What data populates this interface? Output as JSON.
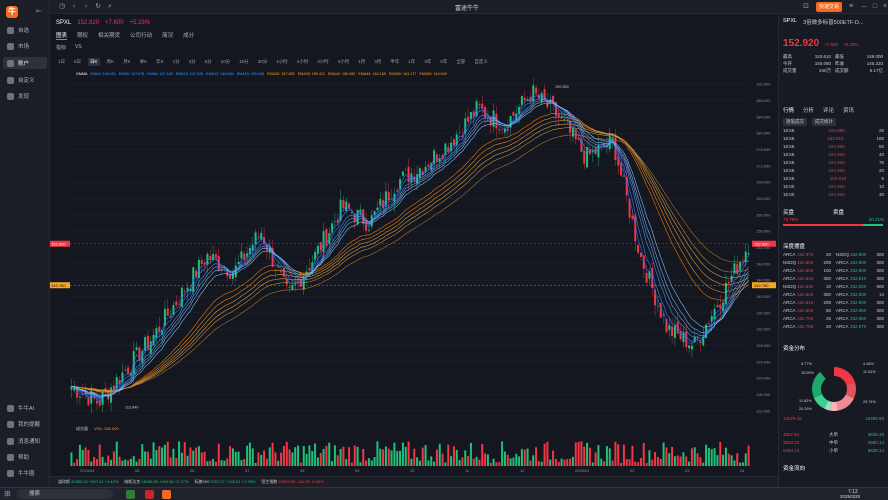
{
  "sidebar": {
    "logo": "牛",
    "items": [
      {
        "label": "自选",
        "active": false
      },
      {
        "label": "市场",
        "active": false
      },
      {
        "label": "账户",
        "active": true
      },
      {
        "label": "自定义",
        "active": false
      },
      {
        "label": "发现",
        "active": false
      }
    ],
    "bottom_items": [
      {
        "label": "牛牛AI"
      },
      {
        "label": "我的提醒"
      },
      {
        "label": "消息通知"
      },
      {
        "label": "帮助"
      },
      {
        "label": "牛牛圈"
      }
    ]
  },
  "titlebar": {
    "title": "富途牛牛",
    "trade_button": "快速交易"
  },
  "symbol": {
    "code": "SPXL",
    "price": "152.920",
    "change": "+7.600",
    "change_pct": "+5.23%"
  },
  "tabs": [
    "图表",
    "期权",
    "相关期货",
    "公司行动",
    "简况",
    "成分"
  ],
  "tools": [
    "指标",
    "VS"
  ],
  "periods": [
    "1日",
    "5日",
    "日K",
    "周K",
    "月K",
    "季K",
    "年K",
    "1分",
    "3分",
    "5分",
    "10分",
    "15分",
    "30分",
    "1小时",
    "2小时",
    "3小时",
    "4小时",
    "1月",
    "3月",
    "半年",
    "1年",
    "3年",
    "5年",
    "全部",
    "自定义"
  ],
  "active_period": "日K",
  "ma_legend": [
    {
      "text": "GMMA",
      "color": "#ffffff"
    },
    {
      "text": "EMA3: 149.051",
      "color": "#3b9cff"
    },
    {
      "text": "EMA5: 147.078",
      "color": "#3b9cff"
    },
    {
      "text": "EMA8: 147.182",
      "color": "#3b9cff"
    },
    {
      "text": "EMA10: 147.628",
      "color": "#3b9cff"
    },
    {
      "text": "EMA12: 148.464",
      "color": "#3b9cff"
    },
    {
      "text": "EMA15: 150.648",
      "color": "#3b9cff"
    },
    {
      "text": "EMA30: 157.883",
      "color": "#f5a623"
    },
    {
      "text": "EMA35: 159.411",
      "color": "#f5a623"
    },
    {
      "text": "EMA40: 160.653",
      "color": "#f5a623"
    },
    {
      "text": "EMA45: 162.169",
      "color": "#f5a623"
    },
    {
      "text": "EMA50: 163.177",
      "color": "#f5a623"
    },
    {
      "text": "EMA60: 164.649",
      "color": "#f5a623"
    }
  ],
  "y_ticks": [
    "192.000",
    "188.000",
    "184.000",
    "180.000",
    "176.000",
    "172.000",
    "168.000",
    "164.000",
    "160.000",
    "156.000",
    "152.000",
    "148.000",
    "144.000",
    "140.000",
    "136.000",
    "132.000",
    "128.000",
    "124.000",
    "120.000",
    "116.000",
    "112.000"
  ],
  "price_marker": "152.920",
  "price_marker2": "142.760",
  "high_label": "190.550",
  "low_label": "113.840",
  "volume_label": "成交量",
  "volume_value": "VOL: 340.000",
  "x_ticks": [
    "2024/04",
    "05",
    "06",
    "07",
    "08",
    "09",
    "10",
    "11",
    "12",
    "2025/01",
    "02",
    "03",
    "04"
  ],
  "chart_data": {
    "type": "candlestick",
    "x": [
      "2024/04",
      "2024/05",
      "2024/06",
      "2024/07",
      "2024/08",
      "2024/09",
      "2024/10",
      "2024/11",
      "2024/12",
      "2025/01",
      "2025/02",
      "2025/03"
    ],
    "close_approx": [
      118,
      126,
      140,
      155,
      150,
      160,
      168,
      178,
      184,
      176,
      174,
      152.92
    ],
    "high": 190.55,
    "low": 113.84,
    "ylim": [
      110,
      194
    ]
  },
  "right_panel": {
    "symbol": "SPXL",
    "name": "3倍做多标普500ETF-D...",
    "price": "152.920",
    "change": "+7.600",
    "change_pct": "+5.23%",
    "stats": [
      {
        "k": "最高",
        "v": "153.610"
      },
      {
        "k": "今开",
        "v": "150.080"
      },
      {
        "k": "成交量",
        "v": "340万"
      },
      {
        "k": "最低",
        "v": "149.000"
      },
      {
        "k": "昨收",
        "v": "145.320"
      },
      {
        "k": "成交额",
        "v": "5.17亿"
      }
    ],
    "tabs": [
      "行情",
      "分析",
      "评论",
      "资讯"
    ],
    "sub_tabs": [
      "逐笔成交",
      "成交统计"
    ],
    "trades": [
      {
        "t": "15:59",
        "p": "152.880",
        "v": "25"
      },
      {
        "t": "15:59",
        "p": "152.910",
        "v": "100"
      },
      {
        "t": "15:59",
        "p": "152.930",
        "v": "50"
      },
      {
        "t": "15:59",
        "p": "152.920",
        "v": "40"
      },
      {
        "t": "15:59",
        "p": "152.920",
        "v": "75"
      },
      {
        "t": "15:59",
        "p": "152.930",
        "v": "20"
      },
      {
        "t": "15:59",
        "p": "152.910",
        "v": "5"
      },
      {
        "t": "16:00",
        "p": "152.920",
        "v": "10"
      },
      {
        "t": "16:00",
        "p": "152.920",
        "v": "30"
      }
    ],
    "buy_sell_title_buy": "买盘",
    "buy_sell_title_sell": "卖盘",
    "buy_pct": "79.79%",
    "sell_pct": "20.21%",
    "depth_title": "深度摆盘",
    "depth_rows": [
      {
        "bx": "ARCA",
        "bp": "152.870",
        "bv": "20",
        "ax": "NSDQ",
        "ap": "152.880",
        "av": "300"
      },
      {
        "bx": "NSDQ",
        "bp": "152.860",
        "bv": "200",
        "ax": "ARCA",
        "ap": "152.890",
        "av": "300"
      },
      {
        "bx": "ARCA",
        "bp": "152.850",
        "bv": "100",
        "ax": "ARCA",
        "ap": "152.900",
        "av": "300"
      },
      {
        "bx": "ARCA",
        "bp": "152.840",
        "bv": "300",
        "ax": "ARCA",
        "ap": "152.910",
        "av": "300"
      },
      {
        "bx": "NSDQ",
        "bp": "152.830",
        "bv": "10",
        "ax": "ARCA",
        "ap": "152.920",
        "av": "600"
      },
      {
        "bx": "ARCA",
        "bp": "152.820",
        "bv": "300",
        "ax": "ARCA",
        "ap": "152.930",
        "av": "14"
      },
      {
        "bx": "ARCA",
        "bp": "152.810",
        "bv": "200",
        "ax": "ARCA",
        "ap": "152.940",
        "av": "300"
      },
      {
        "bx": "ARCA",
        "bp": "152.800",
        "bv": "50",
        "ax": "ARCA",
        "ap": "152.950",
        "av": "300"
      },
      {
        "bx": "ARCA",
        "bp": "152.790",
        "bv": "25",
        "ax": "ARCA",
        "ap": "152.960",
        "av": "300"
      },
      {
        "bx": "ARCA",
        "bp": "152.780",
        "bv": "20",
        "ax": "ARCA",
        "ap": "152.970",
        "av": "300"
      }
    ],
    "fund_title": "资金分布",
    "fund_pcts": [
      "5.77%",
      "4.48%",
      "11.04%",
      "15.05%",
      "11.82%",
      "20.74%",
      "20.26%"
    ],
    "fund_in": "14078.18",
    "fund_out": "16495.93",
    "fund_rows": [
      {
        "l": "4807.61",
        "c": "大单",
        "r": "3639.49"
      },
      {
        "l": "3053.23",
        "c": "中单",
        "r": "2560.14"
      },
      {
        "l": "6384.14",
        "c": "小单",
        "r": "6538.14"
      }
    ],
    "flow_title": "资金流向"
  },
  "bottom_tickers": [
    {
      "name": "道琼斯",
      "v": "42583.32",
      "c": "+597.41",
      "p": "+1.42%"
    },
    {
      "name": "纳斯达克",
      "v": "18188.59",
      "c": "+404.54",
      "p": "+2.27%"
    },
    {
      "name": "标普500",
      "v": "5767.57",
      "c": "+100.01",
      "p": "+1.76%"
    },
    {
      "name": "恒生指数",
      "v": "23905.56",
      "c": "-164.95",
      "p": "-0.68%"
    }
  ],
  "taskbar": {
    "search": "搜索",
    "time": "7:12",
    "date": "2025/3/25"
  },
  "colors": {
    "up": "#1ec27a",
    "down": "#f23645",
    "accent": "#f56a1f"
  }
}
